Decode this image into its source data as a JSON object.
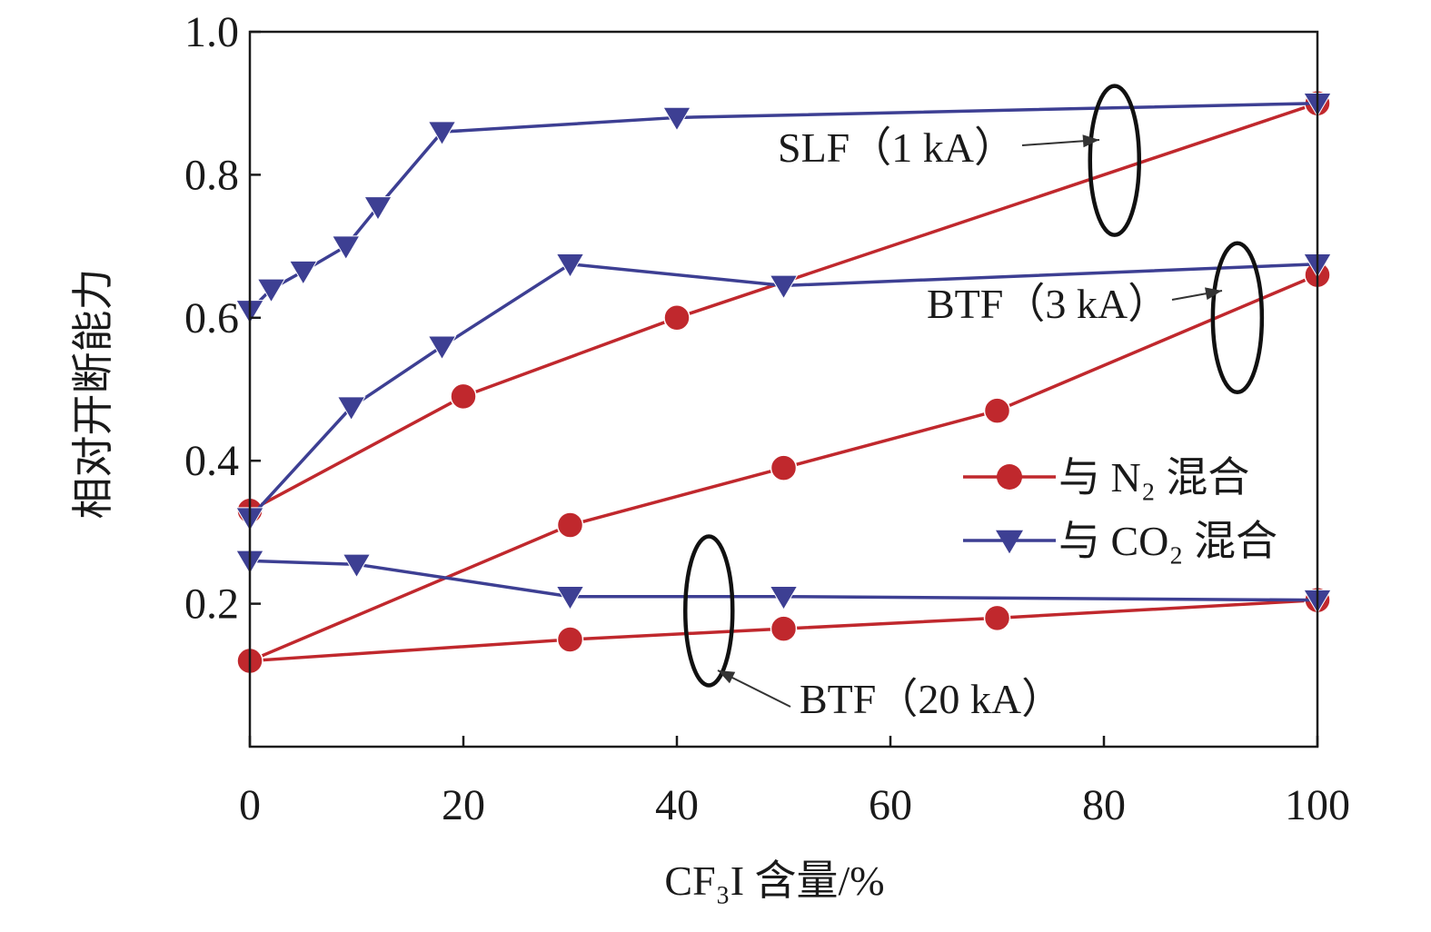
{
  "chart_data": {
    "type": "line",
    "xlabel": "CF₃I 含量/%",
    "ylabel": "相对开断能力",
    "xlim": [
      0,
      100
    ],
    "ylim": [
      0,
      1.0
    ],
    "xticks": [
      "0",
      "20",
      "40",
      "60",
      "80",
      "100"
    ],
    "yticks": [
      "0.2",
      "0.4",
      "0.6",
      "0.8",
      "1.0"
    ],
    "grid": false,
    "legend_position": "center-right",
    "legend": [
      {
        "label": "与 N₂ 混合",
        "color": "#c0282d",
        "marker": "circle"
      },
      {
        "label": "与 CO₂ 混合",
        "color": "#3d3f93",
        "marker": "triangle-down"
      }
    ],
    "series": [
      {
        "group": "SLF（1 kA）",
        "mix": "N2",
        "color": "#c0282d",
        "marker": "circle",
        "x": [
          0,
          20,
          40,
          100
        ],
        "y": [
          0.33,
          0.49,
          0.6,
          0.9
        ]
      },
      {
        "group": "SLF（1 kA）",
        "mix": "CO2",
        "color": "#3d3f93",
        "marker": "triangle-down",
        "x": [
          0,
          2,
          5,
          9,
          12,
          18,
          40,
          100
        ],
        "y": [
          0.61,
          0.64,
          0.665,
          0.7,
          0.755,
          0.86,
          0.88,
          0.9
        ]
      },
      {
        "group": "BTF（3 kA）",
        "mix": "N2",
        "color": "#c0282d",
        "marker": "circle",
        "x": [
          0,
          30,
          50,
          70,
          100
        ],
        "y": [
          0.12,
          0.31,
          0.39,
          0.47,
          0.66
        ]
      },
      {
        "group": "BTF（3 kA）",
        "mix": "CO2",
        "color": "#3d3f93",
        "marker": "triangle-down",
        "x": [
          0,
          9.5,
          18,
          30,
          50,
          100
        ],
        "y": [
          0.32,
          0.475,
          0.56,
          0.675,
          0.645,
          0.675
        ]
      },
      {
        "group": "BTF（20 kA）",
        "mix": "N2",
        "color": "#c0282d",
        "marker": "circle",
        "x": [
          0,
          30,
          50,
          70,
          100
        ],
        "y": [
          0.12,
          0.15,
          0.165,
          0.18,
          0.205
        ]
      },
      {
        "group": "BTF（20 kA）",
        "mix": "CO2",
        "color": "#3d3f93",
        "marker": "triangle-down",
        "x": [
          0,
          10,
          30,
          50,
          100
        ],
        "y": [
          0.26,
          0.255,
          0.21,
          0.21,
          0.205
        ]
      }
    ],
    "annotations": [
      {
        "text": "SLF（1 kA）",
        "ellipse_center": [
          81,
          0.82
        ]
      },
      {
        "text": "BTF（3 kA）",
        "ellipse_center": [
          92.5,
          0.6
        ]
      },
      {
        "text": "BTF（20 kA）",
        "ellipse_center": [
          43,
          0.19
        ]
      }
    ]
  }
}
